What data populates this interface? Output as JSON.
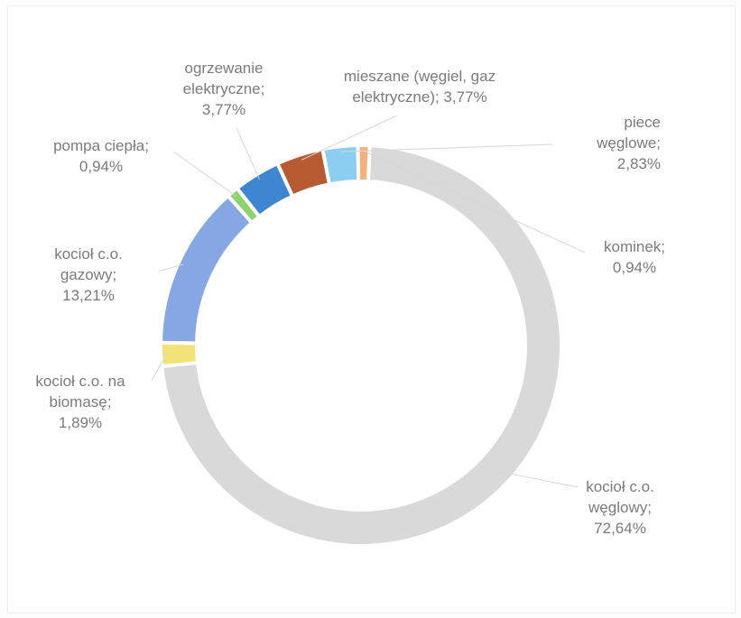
{
  "chart_data": {
    "type": "pie",
    "variant": "doughnut",
    "title": "",
    "legend": "none",
    "slices": [
      {
        "name": "kocioł c.o. węglowy",
        "value": 72.64,
        "label_lines": [
          "kocioł c.o.",
          "węglowy;",
          "72,64%"
        ],
        "color": "#d9d9d9"
      },
      {
        "name": "kocioł c.o. na biomasę",
        "value": 1.89,
        "label_lines": [
          "kocioł c.o. na",
          "biomasę;",
          "1,89%"
        ],
        "color": "#f2e27a"
      },
      {
        "name": "kocioł c.o. gazowy",
        "value": 13.21,
        "label_lines": [
          "kocioł c.o.",
          "gazowy;",
          "13,21%"
        ],
        "color": "#86a7e4"
      },
      {
        "name": "pompa ciepła",
        "value": 0.94,
        "label_lines": [
          "pompa ciepła;",
          "0,94%"
        ],
        "color": "#8fd36e"
      },
      {
        "name": "ogrzewanie elektryczne",
        "value": 3.77,
        "label_lines": [
          "ogrzewanie",
          "elektryczne;",
          "3,77%"
        ],
        "color": "#3f86d0"
      },
      {
        "name": "mieszane (węgiel, gaz elektryczne)",
        "value": 3.77,
        "label_lines": [
          "mieszane (węgiel, gaz",
          "elektryczne); 3,77%"
        ],
        "color": "#b85a32"
      },
      {
        "name": "piece węglowe",
        "value": 2.83,
        "label_lines": [
          "piece",
          "węglowe;",
          "2,83%"
        ],
        "color": "#8ccdf2"
      },
      {
        "name": "kominek",
        "value": 0.94,
        "label_lines": [
          "kominek;",
          "0,94%"
        ],
        "color": "#f5b07c"
      }
    ]
  }
}
